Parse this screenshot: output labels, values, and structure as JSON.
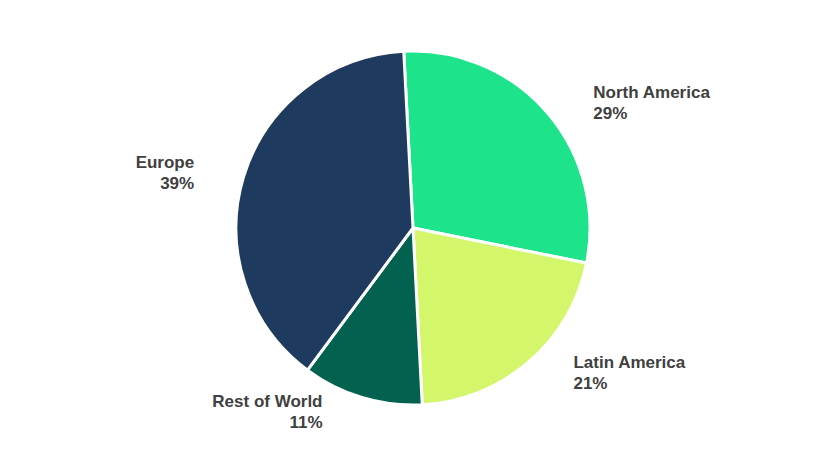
{
  "chart_data": {
    "type": "pie",
    "categories": [
      "North America",
      "Latin America",
      "Rest of World",
      "Europe"
    ],
    "values": [
      29,
      21,
      11,
      39
    ],
    "value_labels": [
      "29%",
      "21%",
      "11%",
      "39%"
    ],
    "colors": [
      "#1de38b",
      "#d3f66b",
      "#02614f",
      "#1f3a5f"
    ],
    "data_labels": true
  }
}
